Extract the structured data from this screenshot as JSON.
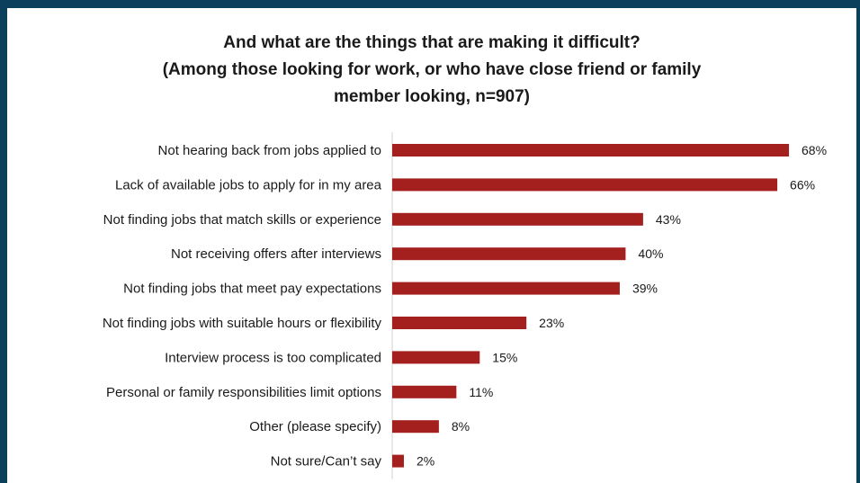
{
  "chart_data": {
    "type": "bar",
    "orientation": "horizontal",
    "title": [
      "And what are the things that are making it difficult?",
      "(Among those looking for work, or who have close friend or family",
      "member looking, n=907)"
    ],
    "categories": [
      "Not hearing back from jobs applied to",
      "Lack of available jobs to apply for in my area",
      "Not finding jobs that match skills or experience",
      "Not receiving offers after interviews",
      "Not finding jobs that meet pay expectations",
      "Not finding jobs with suitable hours or flexibility",
      "Interview process is too complicated",
      "Personal or family responsibilities limit options",
      "Other (please specify)",
      "Not sure/Can’t say"
    ],
    "values": [
      68,
      66,
      43,
      40,
      39,
      23,
      15,
      11,
      8,
      2
    ],
    "value_labels": [
      "68%",
      "66%",
      "43%",
      "40%",
      "39%",
      "23%",
      "15%",
      "11%",
      "8%",
      "2%"
    ],
    "xlim": [
      0,
      70
    ],
    "grid": false,
    "legend": "none",
    "bar_color": "#a3201e"
  }
}
